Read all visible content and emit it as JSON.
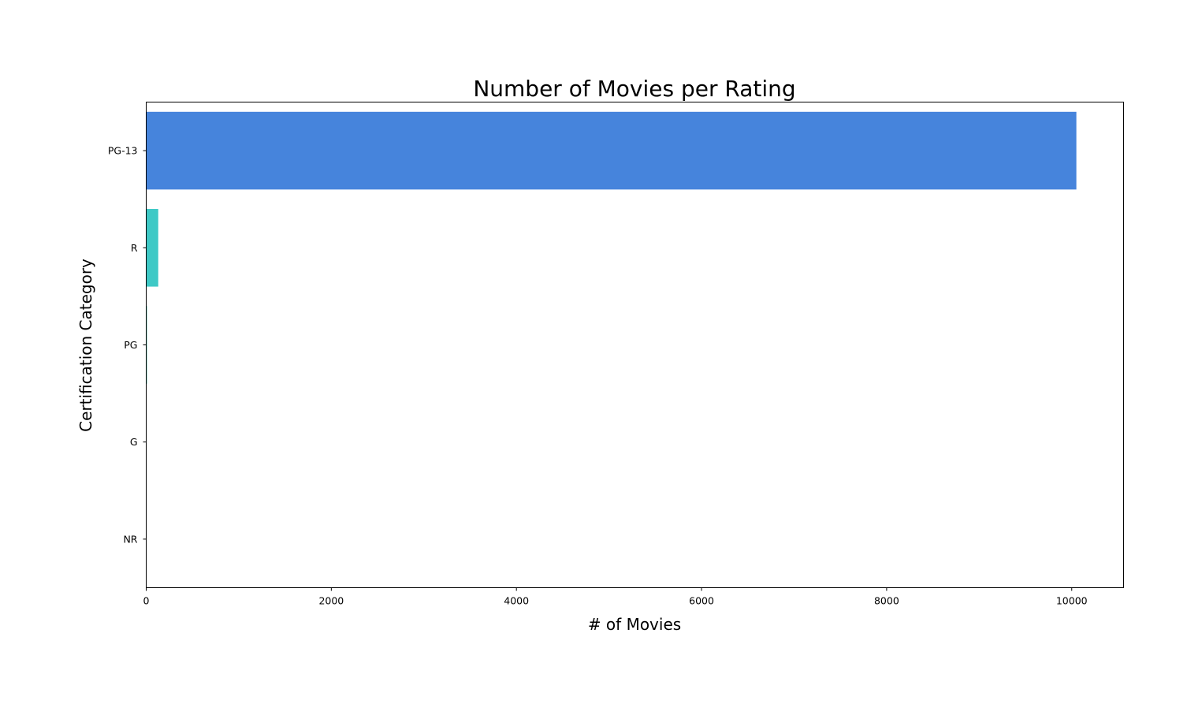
{
  "chart_data": {
    "type": "bar",
    "orientation": "horizontal",
    "title": "Number of Movies per Rating",
    "xlabel": "# of Movies",
    "ylabel": "Certification Category",
    "categories": [
      "PG-13",
      "R",
      "PG",
      "G",
      "NR"
    ],
    "values": [
      10050,
      130,
      8,
      2,
      1
    ],
    "colors": [
      "#4684dc",
      "#3ec9c6",
      "#31b89e",
      "#2aa57f",
      "#239262"
    ],
    "xlim": [
      0,
      10560
    ],
    "xticks": [
      0,
      2000,
      4000,
      6000,
      8000,
      10000
    ],
    "grid": false,
    "legend": "none"
  }
}
